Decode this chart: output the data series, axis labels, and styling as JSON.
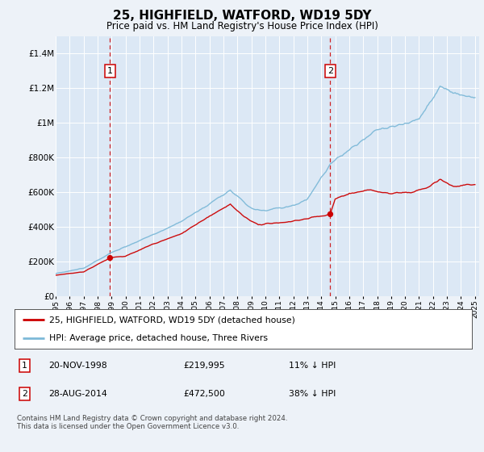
{
  "title": "25, HIGHFIELD, WATFORD, WD19 5DY",
  "subtitle": "Price paid vs. HM Land Registry's House Price Index (HPI)",
  "background_color": "#edf2f8",
  "plot_bg_color": "#dce8f5",
  "hpi_color": "#7db9d8",
  "price_color": "#cc0000",
  "sale1_date_label": "20-NOV-1998",
  "sale1_price": 219995,
  "sale1_hpi_pct": "11% ↓ HPI",
  "sale2_date_label": "28-AUG-2014",
  "sale2_price": 472500,
  "sale2_hpi_pct": "38% ↓ HPI",
  "sale1_x": 1998.89,
  "sale2_x": 2014.65,
  "ylim_max": 1500000,
  "ylabel_ticks": [
    0,
    200000,
    400000,
    600000,
    800000,
    1000000,
    1200000,
    1400000
  ],
  "ylabel_labels": [
    "£0",
    "£200K",
    "£400K",
    "£600K",
    "£800K",
    "£1M",
    "£1.2M",
    "£1.4M"
  ],
  "legend_label1": "25, HIGHFIELD, WATFORD, WD19 5DY (detached house)",
  "legend_label2": "HPI: Average price, detached house, Three Rivers",
  "footer": "Contains HM Land Registry data © Crown copyright and database right 2024.\nThis data is licensed under the Open Government Licence v3.0.",
  "xtick_years": [
    1995,
    1996,
    1997,
    1998,
    1999,
    2000,
    2001,
    2002,
    2003,
    2004,
    2005,
    2006,
    2007,
    2008,
    2009,
    2010,
    2011,
    2012,
    2013,
    2014,
    2015,
    2016,
    2017,
    2018,
    2019,
    2020,
    2021,
    2022,
    2023,
    2024,
    2025
  ]
}
